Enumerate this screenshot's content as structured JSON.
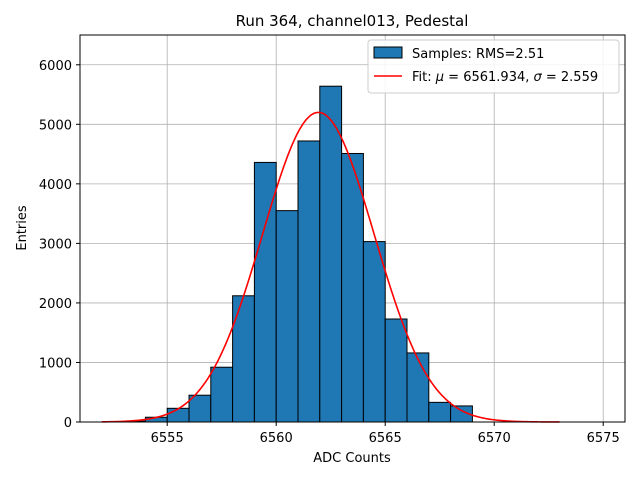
{
  "chart_data": {
    "type": "bar",
    "title": "Run 364, channel013, Pedestal",
    "xlabel": "ADC Counts",
    "ylabel": "Entries",
    "xlim": [
      6551,
      6576
    ],
    "ylim": [
      0,
      6500
    ],
    "grid": true,
    "legend_position": "top-right",
    "xticks": [
      6555,
      6560,
      6565,
      6570,
      6575
    ],
    "yticks": [
      0,
      1000,
      2000,
      3000,
      4000,
      5000,
      6000
    ],
    "histogram": {
      "name": "Samples: RMS=2.51",
      "color": "#1f77b4",
      "bins": [
        {
          "left": 6553,
          "right": 6554,
          "count": 15
        },
        {
          "left": 6554,
          "right": 6555,
          "count": 80
        },
        {
          "left": 6555,
          "right": 6556,
          "count": 230
        },
        {
          "left": 6556,
          "right": 6557,
          "count": 450
        },
        {
          "left": 6557,
          "right": 6558,
          "count": 920
        },
        {
          "left": 6558,
          "right": 6559,
          "count": 2120
        },
        {
          "left": 6559,
          "right": 6560,
          "count": 4360
        },
        {
          "left": 6560,
          "right": 6561,
          "count": 3550
        },
        {
          "left": 6561,
          "right": 6562,
          "count": 4720
        },
        {
          "left": 6562,
          "right": 6563,
          "count": 5640
        },
        {
          "left": 6563,
          "right": 6564,
          "count": 4510
        },
        {
          "left": 6564,
          "right": 6565,
          "count": 3030
        },
        {
          "left": 6565,
          "right": 6566,
          "count": 1730
        },
        {
          "left": 6566,
          "right": 6567,
          "count": 1160
        },
        {
          "left": 6567,
          "right": 6568,
          "count": 330
        },
        {
          "left": 6568,
          "right": 6569,
          "count": 270
        }
      ]
    },
    "fit": {
      "label_parts": [
        "Fit: ",
        "μ",
        " = 6561.934, ",
        "σ",
        " = 2.559"
      ],
      "color": "#ff0000",
      "mu": 6561.934,
      "sigma": 2.559,
      "amplitude": 5200,
      "x_range": [
        6552,
        6573
      ]
    }
  }
}
